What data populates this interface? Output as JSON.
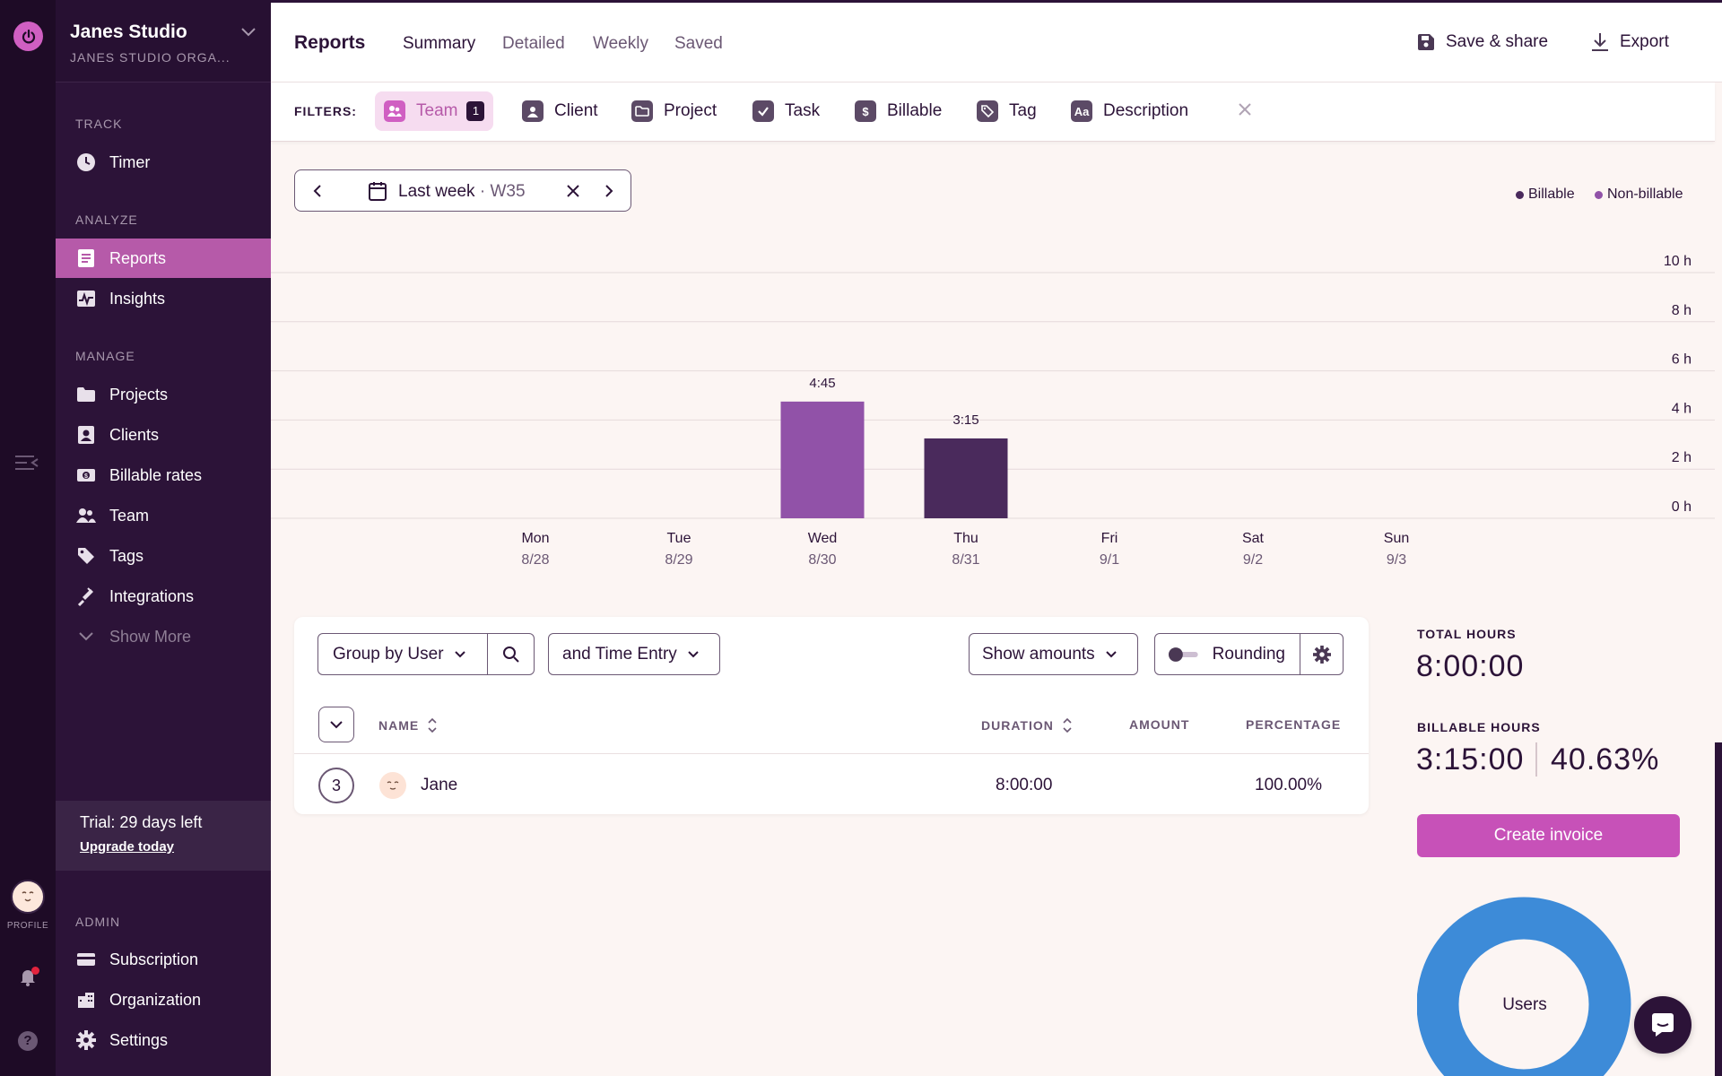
{
  "workspace": {
    "name": "Janes Studio",
    "org": "JANES STUDIO ORGA..."
  },
  "rail": {
    "profile_label": "PROFILE"
  },
  "sidebar": {
    "sections": {
      "track": "TRACK",
      "analyze": "ANALYZE",
      "manage": "MANAGE",
      "admin": "ADMIN"
    },
    "track_items": [
      {
        "label": "Timer",
        "icon": "clock-icon"
      }
    ],
    "analyze_items": [
      {
        "label": "Reports",
        "icon": "reports-icon",
        "active": true
      },
      {
        "label": "Insights",
        "icon": "insights-icon"
      }
    ],
    "manage_items": [
      {
        "label": "Projects",
        "icon": "folder-icon"
      },
      {
        "label": "Clients",
        "icon": "client-icon"
      },
      {
        "label": "Billable rates",
        "icon": "money-icon"
      },
      {
        "label": "Team",
        "icon": "team-icon"
      },
      {
        "label": "Tags",
        "icon": "tag-icon"
      },
      {
        "label": "Integrations",
        "icon": "plug-icon"
      },
      {
        "label": "Show More",
        "icon": "chevron-down-icon"
      }
    ],
    "admin_items": [
      {
        "label": "Subscription",
        "icon": "card-icon"
      },
      {
        "label": "Organization",
        "icon": "building-icon"
      },
      {
        "label": "Settings",
        "icon": "gear-icon"
      }
    ],
    "trial": {
      "text": "Trial: 29 days left",
      "link": "Upgrade today"
    }
  },
  "header": {
    "title": "Reports",
    "tabs": [
      {
        "label": "Summary",
        "active": true
      },
      {
        "label": "Detailed"
      },
      {
        "label": "Weekly"
      },
      {
        "label": "Saved"
      }
    ],
    "save_share": "Save & share",
    "export": "Export"
  },
  "filters": {
    "label": "FILTERS:",
    "chips": [
      {
        "label": "Team",
        "icon": "team-icon",
        "badge": "1",
        "active": true
      },
      {
        "label": "Client",
        "icon": "client-icon"
      },
      {
        "label": "Project",
        "icon": "folder-icon"
      },
      {
        "label": "Task",
        "icon": "checkbox-icon"
      },
      {
        "label": "Billable",
        "icon": "dollar-icon"
      },
      {
        "label": "Tag",
        "icon": "tag-icon"
      },
      {
        "label": "Description",
        "icon": "text-icon",
        "glyph": "Aa"
      }
    ]
  },
  "date_range": {
    "label": "Last week",
    "separator": "·",
    "week": "W35"
  },
  "legend": {
    "billable": "Billable",
    "non_billable": "Non-billable"
  },
  "colors": {
    "billable": "#4a2a5c",
    "non_billable": "#9152a8",
    "accent": "#c751b8",
    "donut": "#3d8bd8"
  },
  "chart_data": {
    "type": "bar",
    "categories": [
      "Mon",
      "Tue",
      "Wed",
      "Thu",
      "Fri",
      "Sat",
      "Sun"
    ],
    "dates": [
      "8/28",
      "8/29",
      "8/30",
      "8/31",
      "9/1",
      "9/2",
      "9/3"
    ],
    "series": [
      {
        "name": "Billable",
        "values": [
          0,
          0,
          0,
          3.25,
          0,
          0,
          0
        ]
      },
      {
        "name": "Non-billable",
        "values": [
          0,
          0,
          4.75,
          0,
          0,
          0,
          0
        ]
      }
    ],
    "bar_labels": [
      "",
      "",
      "4:45",
      "3:15",
      "",
      "",
      ""
    ],
    "y_ticks": [
      "0 h",
      "2 h",
      "4 h",
      "6 h",
      "8 h",
      "10 h"
    ],
    "ylim": [
      0,
      10
    ],
    "grid": true,
    "legend_position": "top-right"
  },
  "table": {
    "group_by": "Group by User",
    "sub_group": "and Time Entry",
    "show_amounts": "Show amounts",
    "rounding": "Rounding",
    "columns": {
      "name": "NAME",
      "duration": "DURATION",
      "amount": "AMOUNT",
      "percentage": "PERCENTAGE"
    },
    "rows": [
      {
        "count": "3",
        "name": "Jane",
        "duration": "8:00:00",
        "amount": "",
        "percentage": "100.00%"
      }
    ]
  },
  "totals": {
    "total_label": "TOTAL HOURS",
    "total_value": "8:00:00",
    "billable_label": "BILLABLE HOURS",
    "billable_value": "3:15:00",
    "billable_pct": "40.63%",
    "invoice_button": "Create invoice",
    "donut_label": "Users"
  }
}
